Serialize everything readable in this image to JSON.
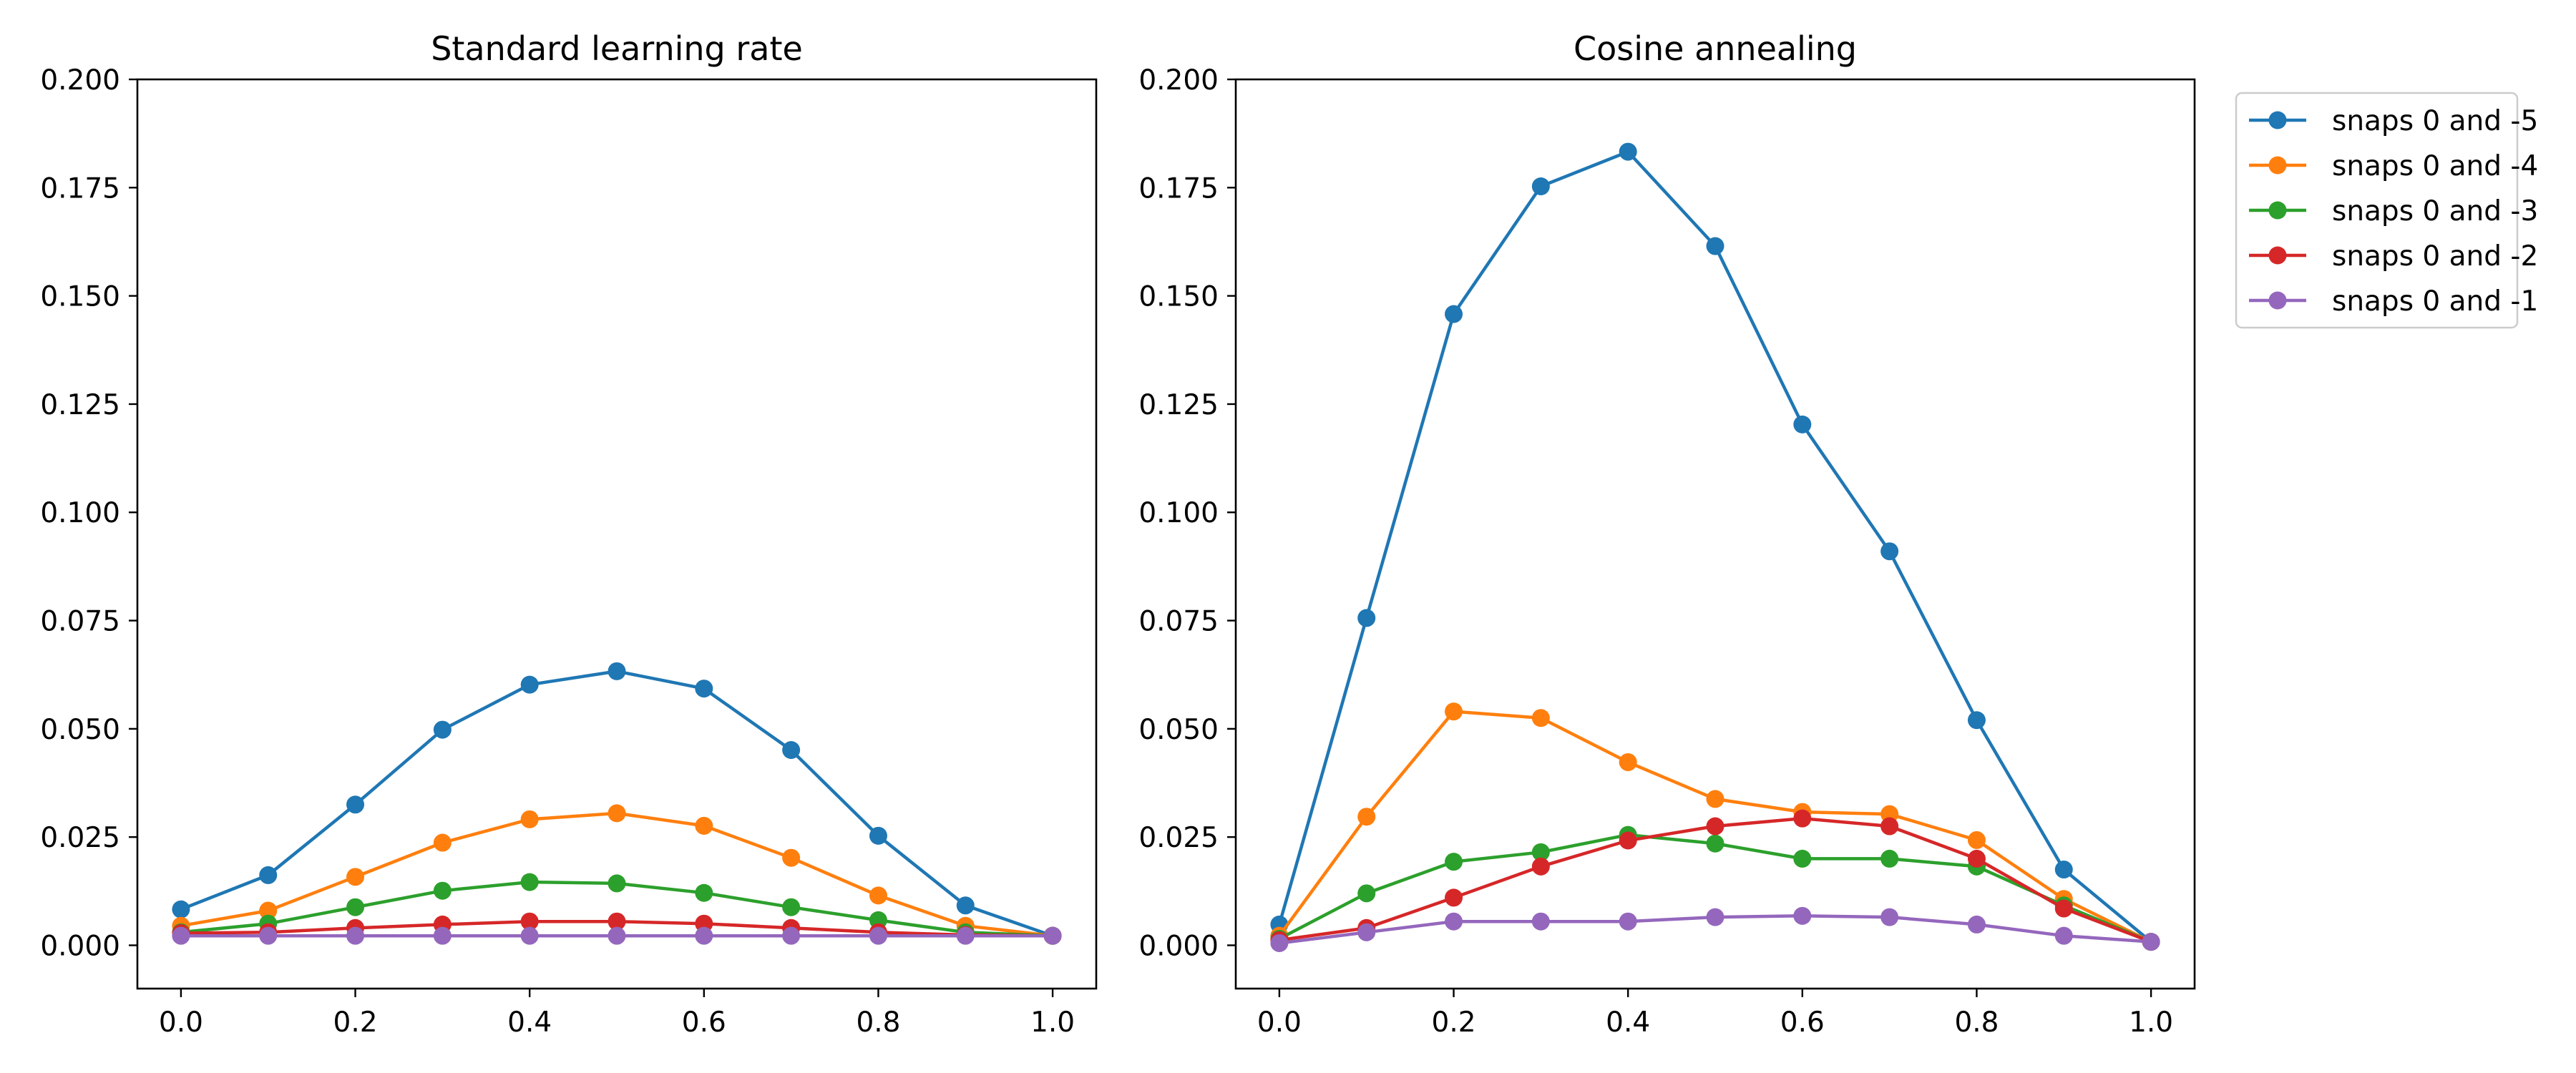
{
  "chart_data": [
    {
      "type": "line",
      "title": "Standard learning rate",
      "xlabel": "",
      "ylabel": "",
      "x": [
        0.0,
        0.1,
        0.2,
        0.3,
        0.4,
        0.5,
        0.6,
        0.7,
        0.8,
        0.9,
        1.0
      ],
      "xlim": [
        -0.05,
        1.05
      ],
      "ylim": [
        -0.01,
        0.2
      ],
      "xticks": [
        "0.0",
        "0.2",
        "0.4",
        "0.6",
        "0.8",
        "1.0"
      ],
      "yticks": [
        "0.000",
        "0.025",
        "0.050",
        "0.075",
        "0.100",
        "0.125",
        "0.150",
        "0.175",
        "0.200"
      ],
      "grid": false,
      "series": [
        {
          "name": "snaps 0 and -5",
          "color": "#1f77b4",
          "values": [
            0.0083,
            0.0162,
            0.0325,
            0.0498,
            0.0602,
            0.0633,
            0.0593,
            0.0451,
            0.0253,
            0.0092,
            0.0022
          ]
        },
        {
          "name": "snaps 0 and -4",
          "color": "#ff7f0e",
          "values": [
            0.0045,
            0.008,
            0.0158,
            0.0237,
            0.0291,
            0.0305,
            0.0276,
            0.0202,
            0.0115,
            0.0045,
            0.0022
          ]
        },
        {
          "name": "snaps 0 and -3",
          "color": "#2ca02c",
          "values": [
            0.003,
            0.005,
            0.0088,
            0.0126,
            0.0146,
            0.0143,
            0.0121,
            0.0088,
            0.0058,
            0.003,
            0.0022
          ]
        },
        {
          "name": "snaps 0 and -2",
          "color": "#d62728",
          "values": [
            0.0028,
            0.003,
            0.004,
            0.0048,
            0.0055,
            0.0055,
            0.005,
            0.004,
            0.003,
            0.0024,
            0.0022
          ]
        },
        {
          "name": "snaps 0 and -1",
          "color": "#9467bd",
          "values": [
            0.0022,
            0.0022,
            0.0022,
            0.0022,
            0.0022,
            0.0022,
            0.0022,
            0.0022,
            0.0022,
            0.0022,
            0.0022
          ]
        }
      ]
    },
    {
      "type": "line",
      "title": "Cosine annealing",
      "xlabel": "",
      "ylabel": "",
      "x": [
        0.0,
        0.1,
        0.2,
        0.3,
        0.4,
        0.5,
        0.6,
        0.7,
        0.8,
        0.9,
        1.0
      ],
      "xlim": [
        -0.05,
        1.05
      ],
      "ylim": [
        -0.01,
        0.2
      ],
      "xticks": [
        "0.0",
        "0.2",
        "0.4",
        "0.6",
        "0.8",
        "1.0"
      ],
      "yticks": [
        "0.000",
        "0.025",
        "0.050",
        "0.075",
        "0.100",
        "0.125",
        "0.150",
        "0.175",
        "0.200"
      ],
      "grid": false,
      "legend_position": "outside-top-right",
      "series": [
        {
          "name": "snaps 0 and -5",
          "color": "#1f77b4",
          "values": [
            0.0048,
            0.0756,
            0.1458,
            0.1753,
            0.1833,
            0.1615,
            0.1203,
            0.091,
            0.052,
            0.0175,
            0.0008
          ]
        },
        {
          "name": "snaps 0 and -4",
          "color": "#ff7f0e",
          "values": [
            0.0022,
            0.0297,
            0.054,
            0.0525,
            0.0423,
            0.0338,
            0.0308,
            0.0303,
            0.0243,
            0.0107,
            0.0008
          ]
        },
        {
          "name": "snaps 0 and -3",
          "color": "#2ca02c",
          "values": [
            0.0015,
            0.012,
            0.0193,
            0.0215,
            0.0255,
            0.0235,
            0.02,
            0.02,
            0.0182,
            0.0092,
            0.0008
          ]
        },
        {
          "name": "snaps 0 and -2",
          "color": "#d62728",
          "values": [
            0.0012,
            0.004,
            0.011,
            0.0182,
            0.0242,
            0.0275,
            0.0293,
            0.0275,
            0.02,
            0.0085,
            0.0008
          ]
        },
        {
          "name": "snaps 0 and -1",
          "color": "#9467bd",
          "values": [
            0.0005,
            0.003,
            0.0055,
            0.0055,
            0.0055,
            0.0065,
            0.0068,
            0.0065,
            0.0048,
            0.0022,
            0.0008
          ]
        }
      ]
    }
  ]
}
